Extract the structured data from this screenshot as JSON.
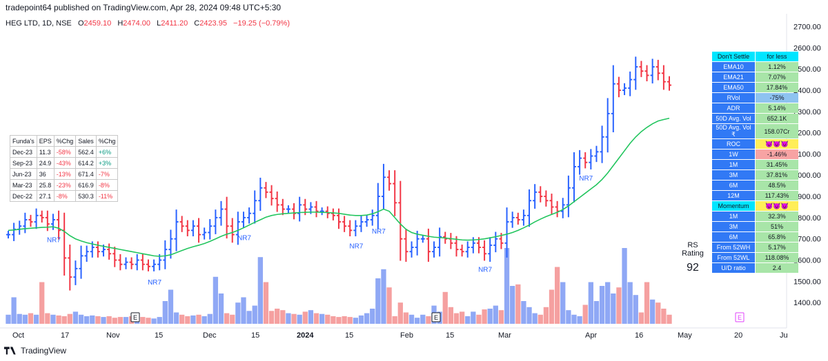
{
  "header": {
    "publisher": "tradepoint64 published on TradingView.com, Apr 28, 2024 09:48 UTC+5:30",
    "symbol": "HEG LTD, 1D, NSE",
    "open_label": "O",
    "open": "2459.10",
    "high_label": "H",
    "high": "2474.00",
    "low_label": "L",
    "low": "2411.20",
    "close_label": "C",
    "close": "2423.95",
    "change": "−19.25 (−0.79%)"
  },
  "footer": {
    "brand": "TradingView"
  },
  "rs_rating": {
    "label": "RS Rating",
    "value": "92"
  },
  "fundamentals": {
    "headers": [
      "Funda's",
      "EPS",
      "%Chg",
      "Sales",
      "%Chg"
    ],
    "rows": [
      [
        "Dec-23",
        "11.3",
        "-58%",
        "562.4",
        "+6%"
      ],
      [
        "Sep-23",
        "24.9",
        "-43%",
        "614.2",
        "+3%"
      ],
      [
        "Jun-23",
        "36",
        "-13%",
        "671.4",
        "-7%"
      ],
      [
        "Mar-23",
        "25.8",
        "-23%",
        "616.9",
        "-8%"
      ],
      [
        "Dec-22",
        "27.1",
        "-8%",
        "530.3",
        "-11%"
      ]
    ]
  },
  "stats_table": [
    {
      "k": "Don't Settle",
      "v": "for less",
      "kc": "cy",
      "vc": "cy"
    },
    {
      "k": "EMA10",
      "v": "1.12%",
      "kc": "k",
      "vc": "g"
    },
    {
      "k": "EMA21",
      "v": "7.07%",
      "kc": "k",
      "vc": "g"
    },
    {
      "k": "EMA50",
      "v": "17.84%",
      "kc": "k",
      "vc": "g"
    },
    {
      "k": "RVol",
      "v": "-75%",
      "kc": "k",
      "vc": "lb"
    },
    {
      "k": "ADR",
      "v": "5.14%",
      "kc": "k",
      "vc": "g"
    },
    {
      "k": "50D Avg. Vol",
      "v": "652.1K",
      "kc": "k",
      "vc": "g"
    },
    {
      "k": "50D Avg. Vol ₹",
      "v": "158.07Cr",
      "kc": "k",
      "vc": "g"
    },
    {
      "k": "ROC",
      "v": "😈😈😈",
      "kc": "k",
      "vc": "y"
    },
    {
      "k": "1W",
      "v": "-1.46%",
      "kc": "k",
      "vc": "r"
    },
    {
      "k": "1M",
      "v": "31.45%",
      "kc": "k",
      "vc": "g"
    },
    {
      "k": "3M",
      "v": "37.81%",
      "kc": "k",
      "vc": "g"
    },
    {
      "k": "6M",
      "v": "48.5%",
      "kc": "k",
      "vc": "g"
    },
    {
      "k": "12M",
      "v": "117.43%",
      "kc": "k",
      "vc": "g"
    },
    {
      "k": "Momentum",
      "v": "😈😈😈",
      "kc": "cy",
      "vc": "y"
    },
    {
      "k": "1M",
      "v": "32.3%",
      "kc": "k",
      "vc": "g"
    },
    {
      "k": "3M",
      "v": "51%",
      "kc": "k",
      "vc": "g"
    },
    {
      "k": "6M",
      "v": "65.8%",
      "kc": "k",
      "vc": "g"
    },
    {
      "k": "From 52WH",
      "v": "5.17%",
      "kc": "k",
      "vc": "g"
    },
    {
      "k": "From 52WL",
      "v": "118.08%",
      "kc": "k",
      "vc": "g"
    },
    {
      "k": "U/D ratio",
      "v": "2.4",
      "kc": "k",
      "vc": "g"
    }
  ],
  "chart_data": {
    "type": "line",
    "y_ticks": [
      "2700.00",
      "2600.00",
      "2500.00",
      "2400.00",
      "2300.00",
      "2200.00",
      "2100.00",
      "2000.00",
      "1900.00",
      "1800.00",
      "1700.00",
      "1600.00",
      "1500.00",
      "1400.00"
    ],
    "x_ticks": [
      "Oct",
      "17",
      "Nov",
      "15",
      "Dec",
      "15",
      "2024",
      "15",
      "Feb",
      "15",
      "Mar",
      "Apr",
      "16",
      "May",
      "20",
      "Ju"
    ],
    "ylim": [
      1300,
      2760
    ],
    "colors": {
      "up": "#2962ff",
      "down": "#f23645",
      "ma": "#22c55e",
      "vol_up": "#8fa8f5",
      "vol_down": "#f5a0a0"
    },
    "series": [
      {
        "name": "Close",
        "values": [
          1720,
          1745,
          1760,
          1790,
          1780,
          1810,
          1800,
          1770,
          1790,
          1740,
          1610,
          1520,
          1560,
          1620,
          1640,
          1660,
          1640,
          1650,
          1630,
          1600,
          1580,
          1590,
          1580,
          1600,
          1580,
          1570,
          1580,
          1600,
          1650,
          1700,
          1780,
          1760,
          1740,
          1760,
          1720,
          1730,
          1760,
          1800,
          1840,
          1760,
          1720,
          1780,
          1800,
          1820,
          1880,
          1940,
          1920,
          1890,
          1860,
          1840,
          1840,
          1820,
          1860,
          1840,
          1850,
          1830,
          1830,
          1820,
          1810,
          1780,
          1760,
          1740,
          1760,
          1780,
          1790,
          1810,
          1900,
          1990,
          1960,
          1870,
          1700,
          1640,
          1660,
          1700,
          1700,
          1640,
          1660,
          1710,
          1700,
          1680,
          1650,
          1640,
          1660,
          1680,
          1660,
          1630,
          1670,
          1700,
          1680,
          1780,
          1800,
          1790,
          1810,
          1880,
          1920,
          1900,
          1880,
          1850,
          1830,
          1860,
          1940,
          2040,
          2080,
          2060,
          2090,
          2110,
          2180,
          2290,
          2430,
          2400,
          2410,
          2450,
          2510,
          2490,
          2470,
          2510,
          2480,
          2440,
          2423.95
        ]
      },
      {
        "name": "MA",
        "values": [
          1740,
          1742,
          1745,
          1748,
          1750,
          1752,
          1754,
          1755,
          1757,
          1750,
          1735,
          1715,
          1700,
          1690,
          1682,
          1676,
          1670,
          1665,
          1660,
          1655,
          1650,
          1645,
          1640,
          1635,
          1630,
          1625,
          1620,
          1618,
          1620,
          1625,
          1635,
          1645,
          1655,
          1663,
          1670,
          1678,
          1688,
          1700,
          1712,
          1722,
          1730,
          1740,
          1752,
          1765,
          1778,
          1790,
          1802,
          1810,
          1815,
          1818,
          1820,
          1822,
          1824,
          1825,
          1826,
          1826,
          1825,
          1824,
          1822,
          1820,
          1816,
          1812,
          1810,
          1810,
          1812,
          1818,
          1828,
          1840,
          1830,
          1800,
          1770,
          1745,
          1730,
          1722,
          1717,
          1712,
          1708,
          1706,
          1704,
          1701,
          1698,
          1695,
          1694,
          1695,
          1697,
          1700,
          1705,
          1710,
          1716,
          1722,
          1730,
          1740,
          1752,
          1765,
          1780,
          1793,
          1805,
          1815,
          1825,
          1838,
          1855,
          1875,
          1895,
          1915,
          1935,
          1955,
          1980,
          2010,
          2045,
          2080,
          2115,
          2150,
          2180,
          2205,
          2225,
          2242,
          2255,
          2262,
          2268
        ]
      }
    ],
    "volume": [
      12,
      35,
      13,
      12,
      14,
      12,
      55,
      14,
      12,
      11,
      10,
      13,
      16,
      12,
      10,
      11,
      10,
      9,
      10,
      8,
      9,
      9,
      10,
      12,
      9,
      8,
      7,
      9,
      30,
      45,
      15,
      12,
      10,
      11,
      12,
      10,
      13,
      62,
      40,
      14,
      12,
      28,
      35,
      17,
      24,
      88,
      55,
      17,
      20,
      18,
      14,
      13,
      12,
      16,
      18,
      14,
      13,
      12,
      10,
      9,
      10,
      9,
      8,
      11,
      14,
      20,
      60,
      72,
      48,
      10,
      28,
      15,
      12,
      8,
      12,
      10,
      24,
      16,
      42,
      22,
      14,
      16,
      10,
      16,
      12,
      19,
      20,
      24,
      18,
      100,
      50,
      52,
      30,
      22,
      14,
      12,
      22,
      45,
      75,
      55,
      18,
      12,
      10,
      25,
      55,
      30,
      50,
      55,
      40,
      48,
      100,
      55,
      38,
      15,
      55,
      32,
      28,
      20,
      12
    ],
    "ma_labels": [
      "NR7",
      "NR7",
      "NR7",
      "NR7",
      "NR7",
      "NR7",
      "NR7"
    ],
    "earnings_marker": "E"
  }
}
